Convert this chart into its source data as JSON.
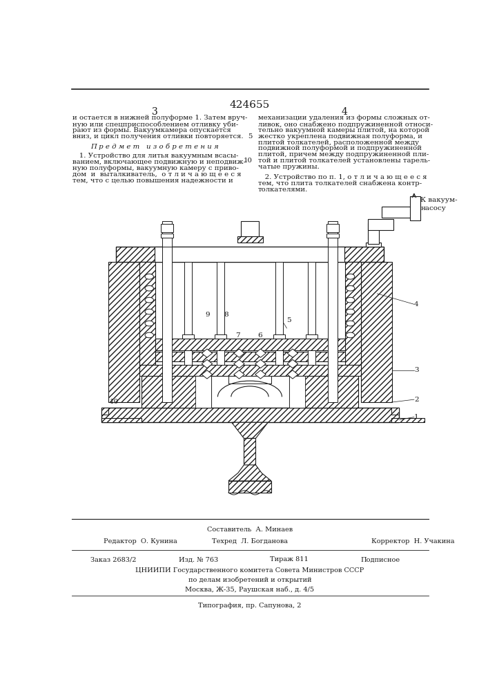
{
  "patent_number": "424655",
  "page_left": "3",
  "page_right": "4",
  "bg_color": "#ffffff",
  "text_color": "#1a1a1a",
  "left_col_text": [
    "и остается в нижней полуформе 1. Затем вруч-",
    "ную или спецприспособлением отливку уби-",
    "рают из формы. Вакуумкамера опускается",
    "вниз, и цикл получения отливки повторяется."
  ],
  "subject_title": "П р е д м е т   и з о б р е т е н и я",
  "left_col_text2": [
    "   1. Устройство для литья вакуумным всасы-",
    "ванием, включающее подвижную и неподвиж-",
    "ную полуформы, вакуумную камеру с приво-",
    "дом  и  выталкиватель,  о т л и ч а ю щ е е с я",
    "тем, что с целью повышения надежности и"
  ],
  "right_col_text": [
    "механизации удаления из формы сложных от-",
    "ливок, оно снабжено подпружиненной относи-",
    "тельно вакуумной камеры плитой, на которой",
    "жестко укреплена подвижная полуформа, и",
    "плитой толкателей, расположенной между",
    "подвижной полуформой и подпружиненной",
    "плитой, причем между подпружиненной пли-",
    "той и плитой толкателей установлены тарель-",
    "чатые пружины."
  ],
  "right_col_text2": [
    "   2. Устройство по п. 1, о т л и ч а ю щ е е с я",
    "тем, что плита толкателей снабжена контр-",
    "толкателями."
  ],
  "vacuum_label": "К вакуум-\nнасосу",
  "footer_line1_left": "Составитель  А. Минаев",
  "footer_editor": "Редактор  О. Кунина",
  "footer_tech": "Техред  Л. Богданова",
  "footer_corrector": "Корректор  Н. Учакина",
  "footer_order": "Заказ 2683/2",
  "footer_izd": "Изд. № 763",
  "footer_tirazh": "Тираж 811",
  "footer_podp": "Подписное",
  "footer_cniipі": "ЦНИИПИ Государственного комитета Совета Министров СССР",
  "footer_dela": "по делам изобретений и открытий",
  "footer_moscow": "Москва, Ж-35, Раушская наб., д. 4/5",
  "footer_tipog": "Типография, пр. Сапунова, 2"
}
